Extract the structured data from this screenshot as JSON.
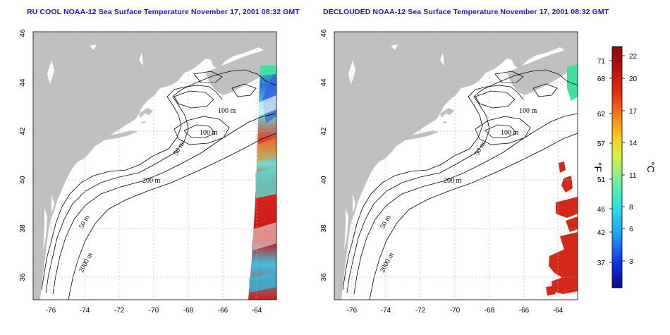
{
  "maps": [
    {
      "title": "RU COOL NOAA-12 Sea Surface Temperature November 17, 2001 08:32 GMT",
      "x_ticks": [
        "-76",
        "-74",
        "-72",
        "-70",
        "-68",
        "-66",
        "-64"
      ],
      "y_ticks": [
        "46",
        "44",
        "42",
        "40",
        "38",
        "36"
      ],
      "contour_labels": [
        "100 m",
        "100 m",
        "50 m",
        "200 m",
        "50 m",
        "2000 m"
      ]
    },
    {
      "title": "DECLOUDED NOAA-12 Sea Surface Temperature November 17, 2001 08:32 GMT",
      "x_ticks": [
        "-76",
        "-74",
        "-72",
        "-70",
        "-68",
        "-66",
        "-64"
      ],
      "y_ticks": [
        "46",
        "44",
        "42",
        "40",
        "38",
        "36"
      ],
      "contour_labels": [
        "100 m",
        "100 m",
        "50 m",
        "200 m",
        "50 m",
        "2000 m"
      ]
    }
  ],
  "colorbar": {
    "fahrenheit_labels": [
      "71",
      "68",
      "62",
      "57",
      "51",
      "46",
      "42",
      "37"
    ],
    "celsius_labels": [
      "22",
      "20",
      "17",
      "14",
      "11",
      "8",
      "6",
      "3"
    ],
    "fahrenheit_unit": "°F",
    "celsius_unit": "°C",
    "gradient": [
      "#0a0a8c",
      "#1030e0",
      "#1ea0f0",
      "#30e0e0",
      "#70f0a0",
      "#d8f040",
      "#f8c820",
      "#f07818",
      "#e02810",
      "#b01010",
      "#8c0a0a"
    ]
  },
  "colors": {
    "land": "#c0c0c0",
    "water": "#ffffff",
    "grid": "#b4b4b4",
    "title": "#1a1ab0"
  }
}
